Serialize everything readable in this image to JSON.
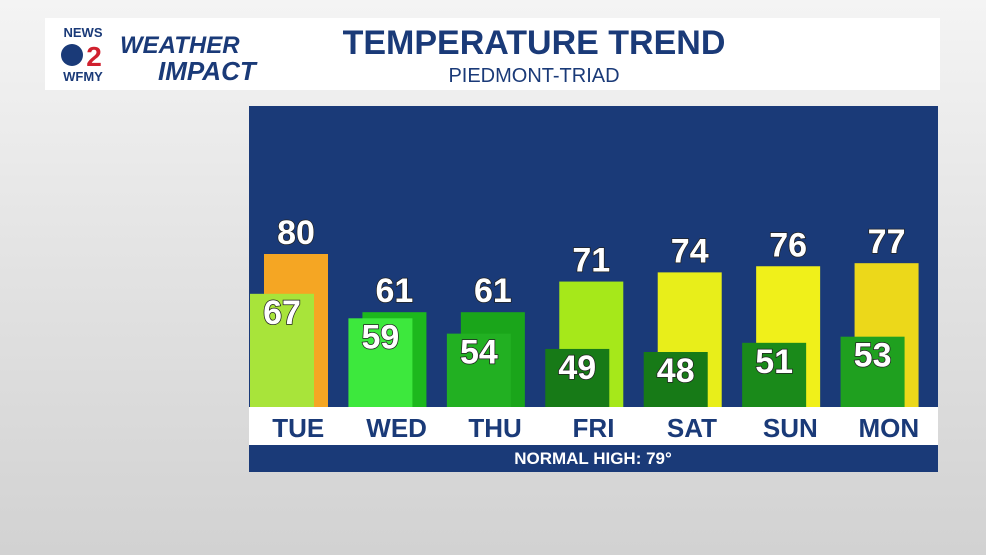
{
  "logo": {
    "news": "NEWS",
    "number": "2",
    "station": "WFMY",
    "weather": "WEATHER",
    "impact": "IMPACT"
  },
  "chart_data": {
    "type": "bar",
    "title": "TEMPERATURE TREND",
    "subtitle": "PIEDMONT-TRIAD",
    "categories": [
      "TUE",
      "WED",
      "THU",
      "FRI",
      "SAT",
      "SUN",
      "MON"
    ],
    "series": [
      {
        "values": [
          80,
          61,
          61,
          71,
          74,
          76,
          77
        ],
        "colors": [
          "#f5a623",
          "#1db81d",
          "#1aa51a",
          "#a6e81a",
          "#e8ee1a",
          "#f0f01a",
          "#ecd81a"
        ]
      },
      {
        "values": [
          67,
          59,
          54,
          49,
          48,
          51,
          53
        ],
        "colors": [
          "#a8e43a",
          "#3de83d",
          "#22b022",
          "#177a17",
          "#177a17",
          "#1a8a1a",
          "#1fa01f"
        ]
      }
    ],
    "note": "NORMAL HIGH: 79°"
  }
}
